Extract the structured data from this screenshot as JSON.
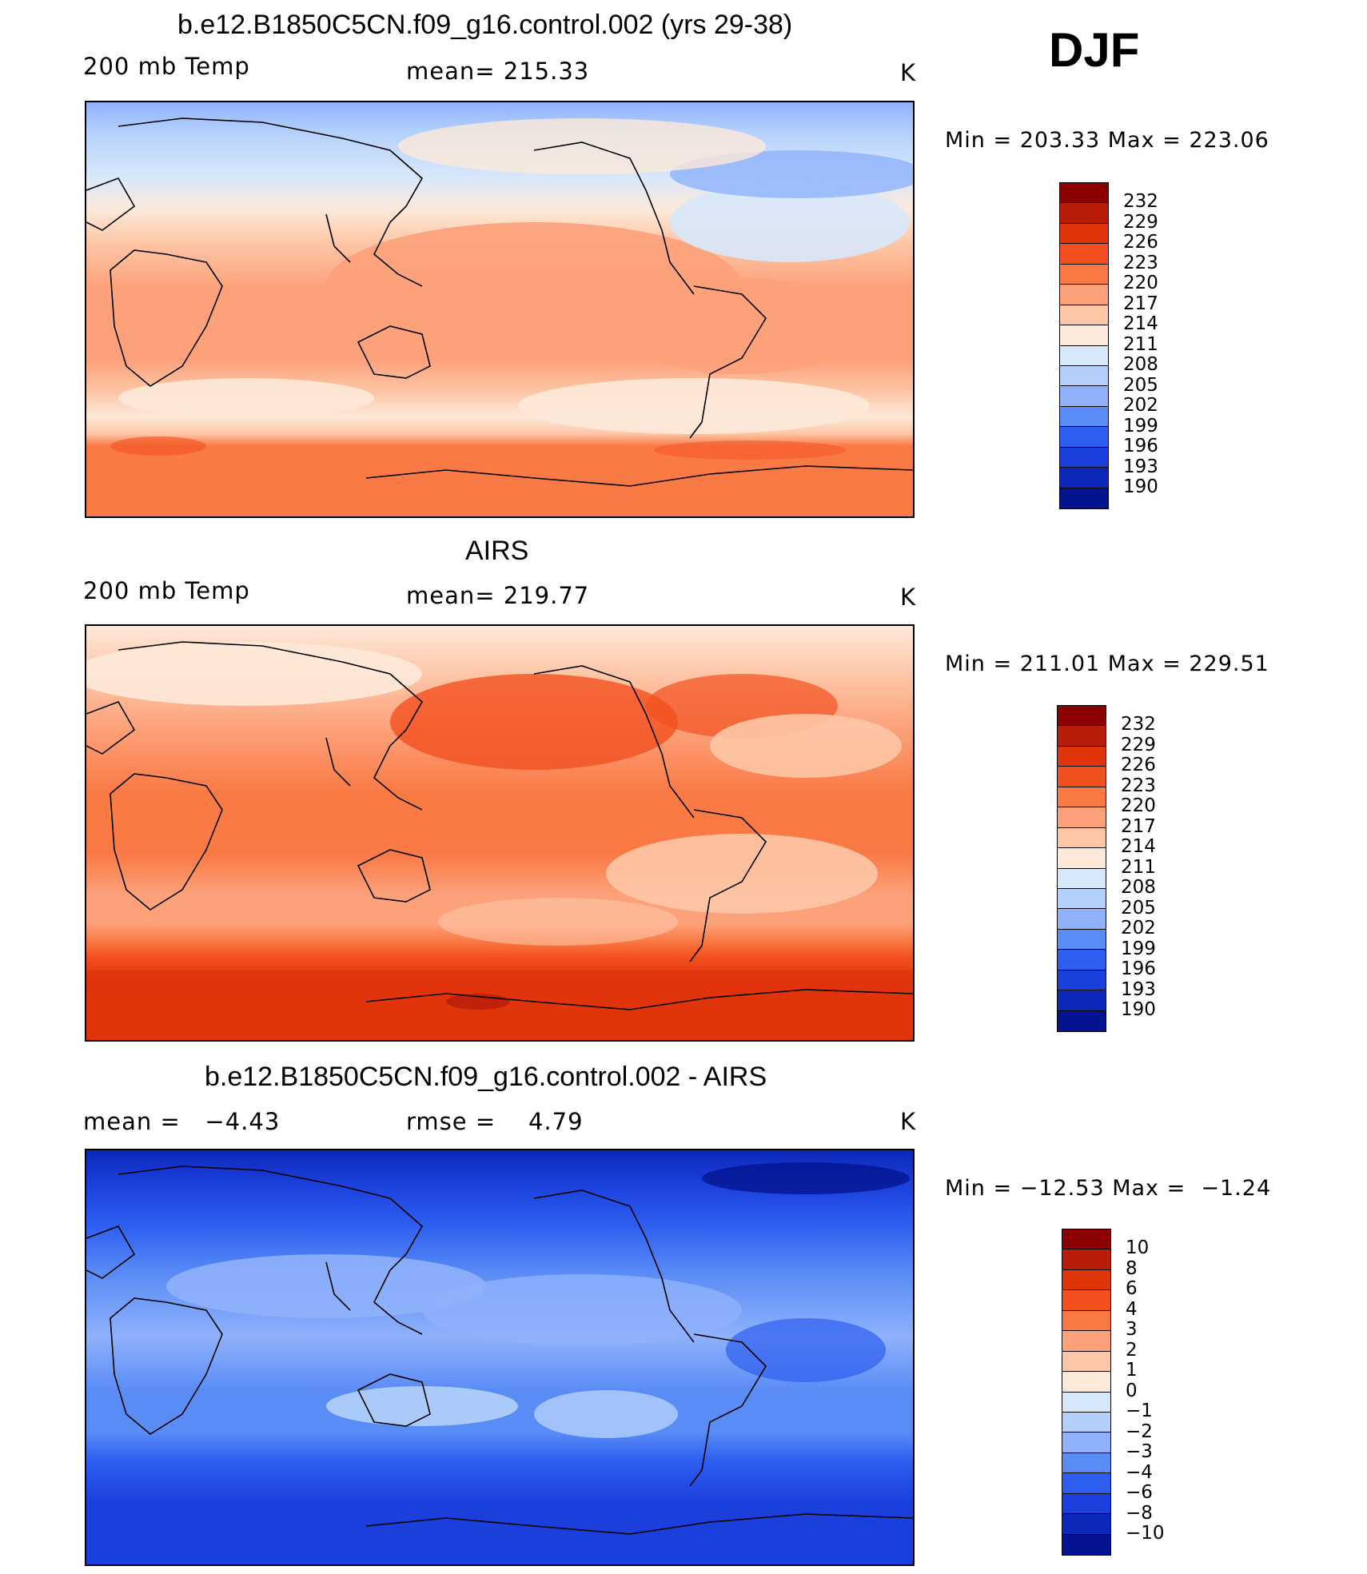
{
  "season": "DJF",
  "panels": [
    {
      "id": "model",
      "title": "b.e12.B1850C5CN.f09_g16.control.002 (yrs 29-38)",
      "left_label": "200 mb Temp",
      "center_label": "mean= 215.33",
      "unit": "K",
      "minmax": "Min = 203.33 Max = 223.06",
      "colorbar_labels": [
        "232",
        "229",
        "226",
        "223",
        "220",
        "217",
        "214",
        "211",
        "208",
        "205",
        "202",
        "199",
        "196",
        "193",
        "190"
      ]
    },
    {
      "id": "obs",
      "title": "AIRS",
      "left_label": "200 mb Temp",
      "center_label": "mean= 219.77",
      "unit": "K",
      "minmax": "Min = 211.01 Max = 229.51",
      "colorbar_labels": [
        "232",
        "229",
        "226",
        "223",
        "220",
        "217",
        "214",
        "211",
        "208",
        "205",
        "202",
        "199",
        "196",
        "193",
        "190"
      ]
    },
    {
      "id": "diff",
      "title": "b.e12.B1850C5CN.f09_g16.control.002 - AIRS",
      "left_label": "mean =   −4.43",
      "center_label": "rmse =    4.79",
      "unit": "K",
      "minmax": "Min = −12.53 Max =  −1.24",
      "colorbar_labels": [
        "10",
        "8",
        "6",
        "4",
        "3",
        "2",
        "1",
        "0",
        "−1",
        "−2",
        "−3",
        "−4",
        "−6",
        "−8",
        "−10"
      ]
    }
  ],
  "colorbar_colors": [
    "#8b0000",
    "#b81d0a",
    "#e0340b",
    "#f2501f",
    "#fa7a46",
    "#fca17a",
    "#fdc6a6",
    "#fde9d9",
    "#d8e8fb",
    "#b3d0fb",
    "#8fb1fb",
    "#5a8cf6",
    "#2e5ef0",
    "#1a3fdb",
    "#0c28b8",
    "#041490"
  ]
}
